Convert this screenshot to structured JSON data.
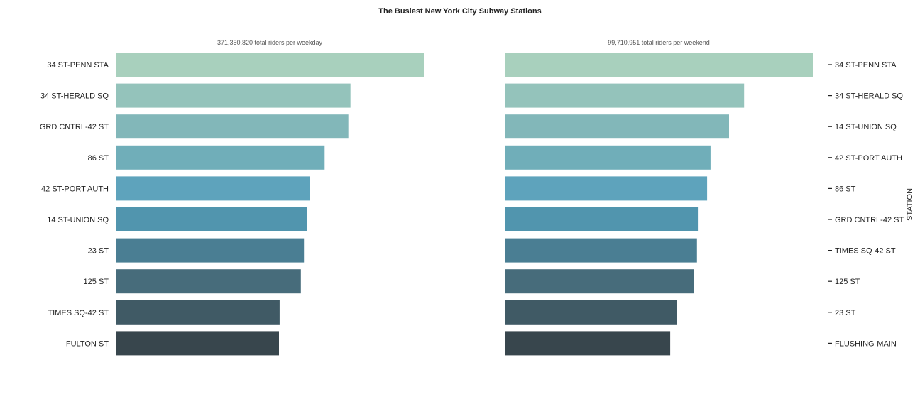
{
  "chart_title": "The Busiest New York City Subway Stations",
  "colors": [
    "#a8d0bd",
    "#94c3bb",
    "#82b7b9",
    "#70aeb9",
    "#5ea3bc",
    "#5195ae",
    "#4a7e93",
    "#476c7b",
    "#405a65",
    "#38464d"
  ],
  "chart_data": [
    {
      "type": "bar",
      "orientation": "horizontal",
      "subtitle": "371,350,820 total riders per weekday",
      "categories": [
        "34 ST-PENN STA",
        "34 ST-HERALD SQ",
        "GRD CNTRL-42 ST",
        "86 ST",
        "42 ST-PORT AUTH",
        "14 ST-UNION SQ",
        "23 ST",
        "125 ST",
        "TIMES SQ-42 ST",
        "FULTON ST"
      ],
      "values": [
        100,
        76.2,
        75.5,
        67.8,
        62.9,
        62.0,
        61.1,
        60.1,
        53.2,
        53.0
      ],
      "xlim": [
        0,
        100
      ],
      "ylabel": "",
      "tick_side": "left",
      "grid": false
    },
    {
      "type": "bar",
      "orientation": "horizontal",
      "subtitle": "99,710,951 total riders per weekend",
      "categories": [
        "34 ST-PENN STA",
        "34 ST-HERALD SQ",
        "14 ST-UNION SQ",
        "42 ST-PORT AUTH",
        "86 ST",
        "GRD CNTRL-42 ST",
        "TIMES SQ-42 ST",
        "125 ST",
        "23 ST",
        "FLUSHING-MAIN"
      ],
      "values": [
        100,
        77.7,
        72.8,
        66.8,
        65.7,
        62.7,
        62.4,
        61.5,
        56.0,
        53.7
      ],
      "xlim": [
        0,
        100
      ],
      "ylabel": "STATION",
      "tick_side": "right",
      "grid": false
    }
  ]
}
